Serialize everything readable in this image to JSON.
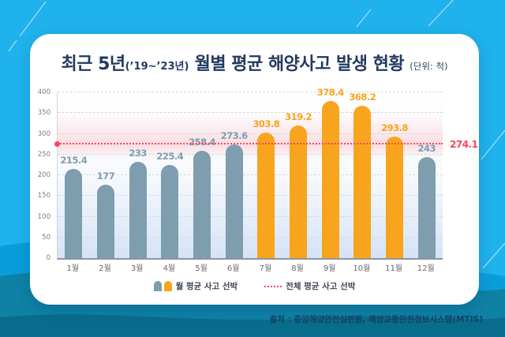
{
  "title": {
    "prefix": "최근 5년",
    "range": "(’19~’23년)",
    "main": " 월별 평균 해양사고 발생 현황 ",
    "unit": "(단위: 척)"
  },
  "chart_data": {
    "type": "bar",
    "title": "최근 5년(’19~’23년) 월별 평균 해양사고 발생 현황",
    "unit": "척",
    "categories": [
      "1월",
      "2월",
      "3월",
      "4월",
      "5월",
      "6월",
      "7월",
      "8월",
      "9월",
      "10월",
      "11월",
      "12월"
    ],
    "values": [
      215.4,
      177,
      233,
      225.4,
      258.4,
      273.6,
      303.8,
      319.2,
      378.4,
      368.2,
      293.8,
      243
    ],
    "highlight_indices": [
      6,
      7,
      8,
      9,
      10
    ],
    "average_line": {
      "value": 274.1,
      "label": "274.1"
    },
    "ylim": [
      0,
      400
    ],
    "yticks": [
      0,
      50,
      100,
      150,
      200,
      250,
      300,
      350,
      400
    ],
    "grid": "dashed-horizontal",
    "legend_position": "bottom",
    "legend": [
      {
        "label": "월 평균 사고 선박"
      },
      {
        "label": "전체 평균 사고 선박"
      }
    ],
    "colors": {
      "normal_bar": "#7E9DAF",
      "highlight_bar": "#F8A41D",
      "average_line": "#F9475C"
    }
  },
  "footer": {
    "source": "출처 : 중앙해양안전심판원, 해양교통안전정보시스템(MTIS)"
  }
}
